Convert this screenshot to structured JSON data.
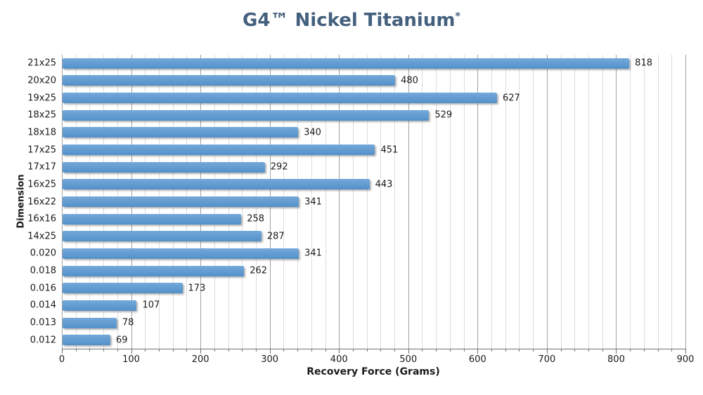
{
  "title": {
    "main": "G4™ Nickel Titanium",
    "superscript": "*"
  },
  "colors": {
    "title": "#44607e",
    "bar": "#5b97cf",
    "grid_minor": "#dcdcdc",
    "grid_major": "#a3a3a3",
    "axis": "#707070",
    "text": "#1a1a1a"
  },
  "chart_data": {
    "type": "bar",
    "orientation": "horizontal",
    "title": "G4™ Nickel Titanium*",
    "categories": [
      "21x25",
      "20x20",
      "19x25",
      "18x25",
      "18x18",
      "17x25",
      "17x17",
      "16x25",
      "16x22",
      "16x16",
      "14x25",
      "0.020",
      "0.018",
      "0.016",
      "0.014",
      "0.013",
      "0.012"
    ],
    "values": [
      818,
      480,
      627,
      529,
      340,
      451,
      292,
      443,
      341,
      258,
      287,
      341,
      262,
      173,
      107,
      78,
      69
    ],
    "xlabel": "Recovery Force (Grams)",
    "ylabel": "Dimension",
    "xlim": [
      0,
      900
    ],
    "x_major_tick": 100,
    "x_minor_tick": 20,
    "x_tick_labels": [
      "0",
      "100",
      "200",
      "300",
      "400",
      "500",
      "600",
      "700",
      "800",
      "900"
    ],
    "grid": true,
    "legend": false,
    "value_labels": true
  }
}
